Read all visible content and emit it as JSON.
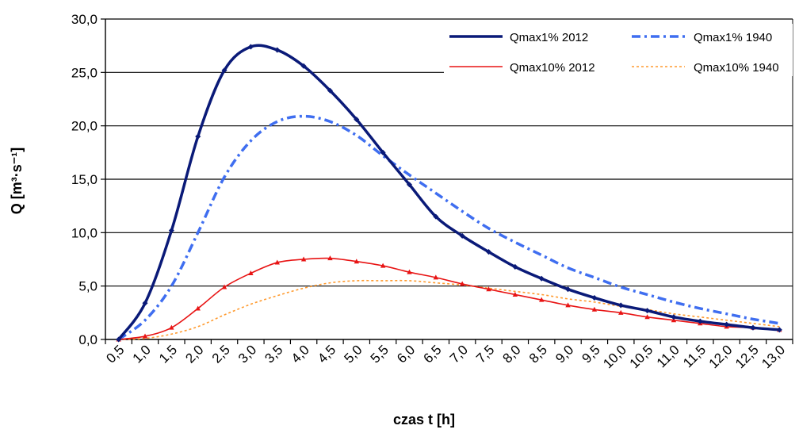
{
  "chart_data": {
    "type": "line",
    "xlabel": "czas t [h]",
    "ylabel": "Q [m³·s⁻¹]",
    "ylim": [
      0,
      30
    ],
    "x_ticks": [
      "0,5",
      "1,0",
      "1,5",
      "2,0",
      "2,5",
      "3,0",
      "3,5",
      "4,0",
      "4,5",
      "5,0",
      "5,5",
      "6,0",
      "6,5",
      "7,0",
      "7,5",
      "8,0",
      "8,5",
      "9,0",
      "9,5",
      "10,0",
      "10,5",
      "11,0",
      "11,5",
      "12,0",
      "12,5",
      "13,0"
    ],
    "y_ticks": [
      "0,0",
      "5,0",
      "10,0",
      "15,0",
      "20,0",
      "25,0",
      "30,0"
    ],
    "grid": "horizontal",
    "legend_position": "top-right",
    "series": [
      {
        "name": "Qmax1% 2012",
        "color": "#0a1a78",
        "style": "solid-markers",
        "x": [
          0.5,
          1.0,
          1.5,
          2.0,
          2.5,
          3.0,
          3.5,
          4.0,
          4.5,
          5.0,
          5.5,
          6.0,
          6.5,
          7.0,
          7.5,
          8.0,
          8.5,
          9.0,
          9.5,
          10.0,
          10.5,
          11.0,
          11.5,
          12.0,
          12.5,
          13.0
        ],
        "values": [
          0.0,
          3.4,
          10.2,
          19.0,
          25.2,
          27.4,
          27.1,
          25.6,
          23.3,
          20.6,
          17.5,
          14.5,
          11.5,
          9.7,
          8.2,
          6.8,
          5.7,
          4.7,
          3.9,
          3.2,
          2.7,
          2.1,
          1.7,
          1.4,
          1.1,
          0.9
        ]
      },
      {
        "name": "Qmax1% 1940",
        "color": "#3f6ef0",
        "style": "dashdot",
        "x": [
          0.5,
          1.0,
          1.5,
          2.0,
          2.5,
          3.0,
          3.5,
          4.0,
          4.5,
          5.0,
          5.5,
          6.0,
          6.5,
          7.0,
          7.5,
          8.0,
          8.5,
          9.0,
          9.5,
          10.0,
          10.5,
          11.0,
          11.5,
          12.0,
          12.5,
          13.0
        ],
        "values": [
          0.0,
          1.8,
          5.0,
          10.0,
          15.2,
          18.6,
          20.4,
          20.9,
          20.4,
          19.1,
          17.2,
          15.4,
          13.7,
          12.0,
          10.4,
          9.1,
          7.9,
          6.7,
          5.8,
          4.9,
          4.2,
          3.5,
          2.9,
          2.4,
          1.9,
          1.5
        ]
      },
      {
        "name": "Qmax10% 2012",
        "color": "#e81414",
        "style": "solid-markers",
        "x": [
          0.5,
          1.0,
          1.5,
          2.0,
          2.5,
          3.0,
          3.5,
          4.0,
          4.5,
          5.0,
          5.5,
          6.0,
          6.5,
          7.0,
          7.5,
          8.0,
          8.5,
          9.0,
          9.5,
          10.0,
          10.5,
          11.0,
          11.5,
          12.0,
          12.5,
          13.0
        ],
        "values": [
          0.0,
          0.3,
          1.1,
          2.9,
          4.9,
          6.2,
          7.2,
          7.5,
          7.6,
          7.3,
          6.9,
          6.3,
          5.8,
          5.2,
          4.7,
          4.2,
          3.7,
          3.2,
          2.8,
          2.5,
          2.1,
          1.8,
          1.5,
          1.2,
          1.1,
          0.9
        ]
      },
      {
        "name": "Qmax10% 1940",
        "color": "#ff9a2e",
        "style": "dotted",
        "x": [
          0.5,
          1.0,
          1.5,
          2.0,
          2.5,
          3.0,
          3.5,
          4.0,
          4.5,
          5.0,
          5.5,
          6.0,
          6.5,
          7.0,
          7.5,
          8.0,
          8.5,
          9.0,
          9.5,
          10.0,
          10.5,
          11.0,
          11.5,
          12.0,
          12.5,
          13.0
        ],
        "values": [
          0.0,
          0.1,
          0.5,
          1.2,
          2.3,
          3.3,
          4.1,
          4.8,
          5.3,
          5.5,
          5.5,
          5.5,
          5.3,
          5.1,
          4.8,
          4.5,
          4.2,
          3.8,
          3.5,
          3.1,
          2.8,
          2.4,
          2.1,
          1.8,
          1.5,
          1.2
        ]
      }
    ]
  }
}
